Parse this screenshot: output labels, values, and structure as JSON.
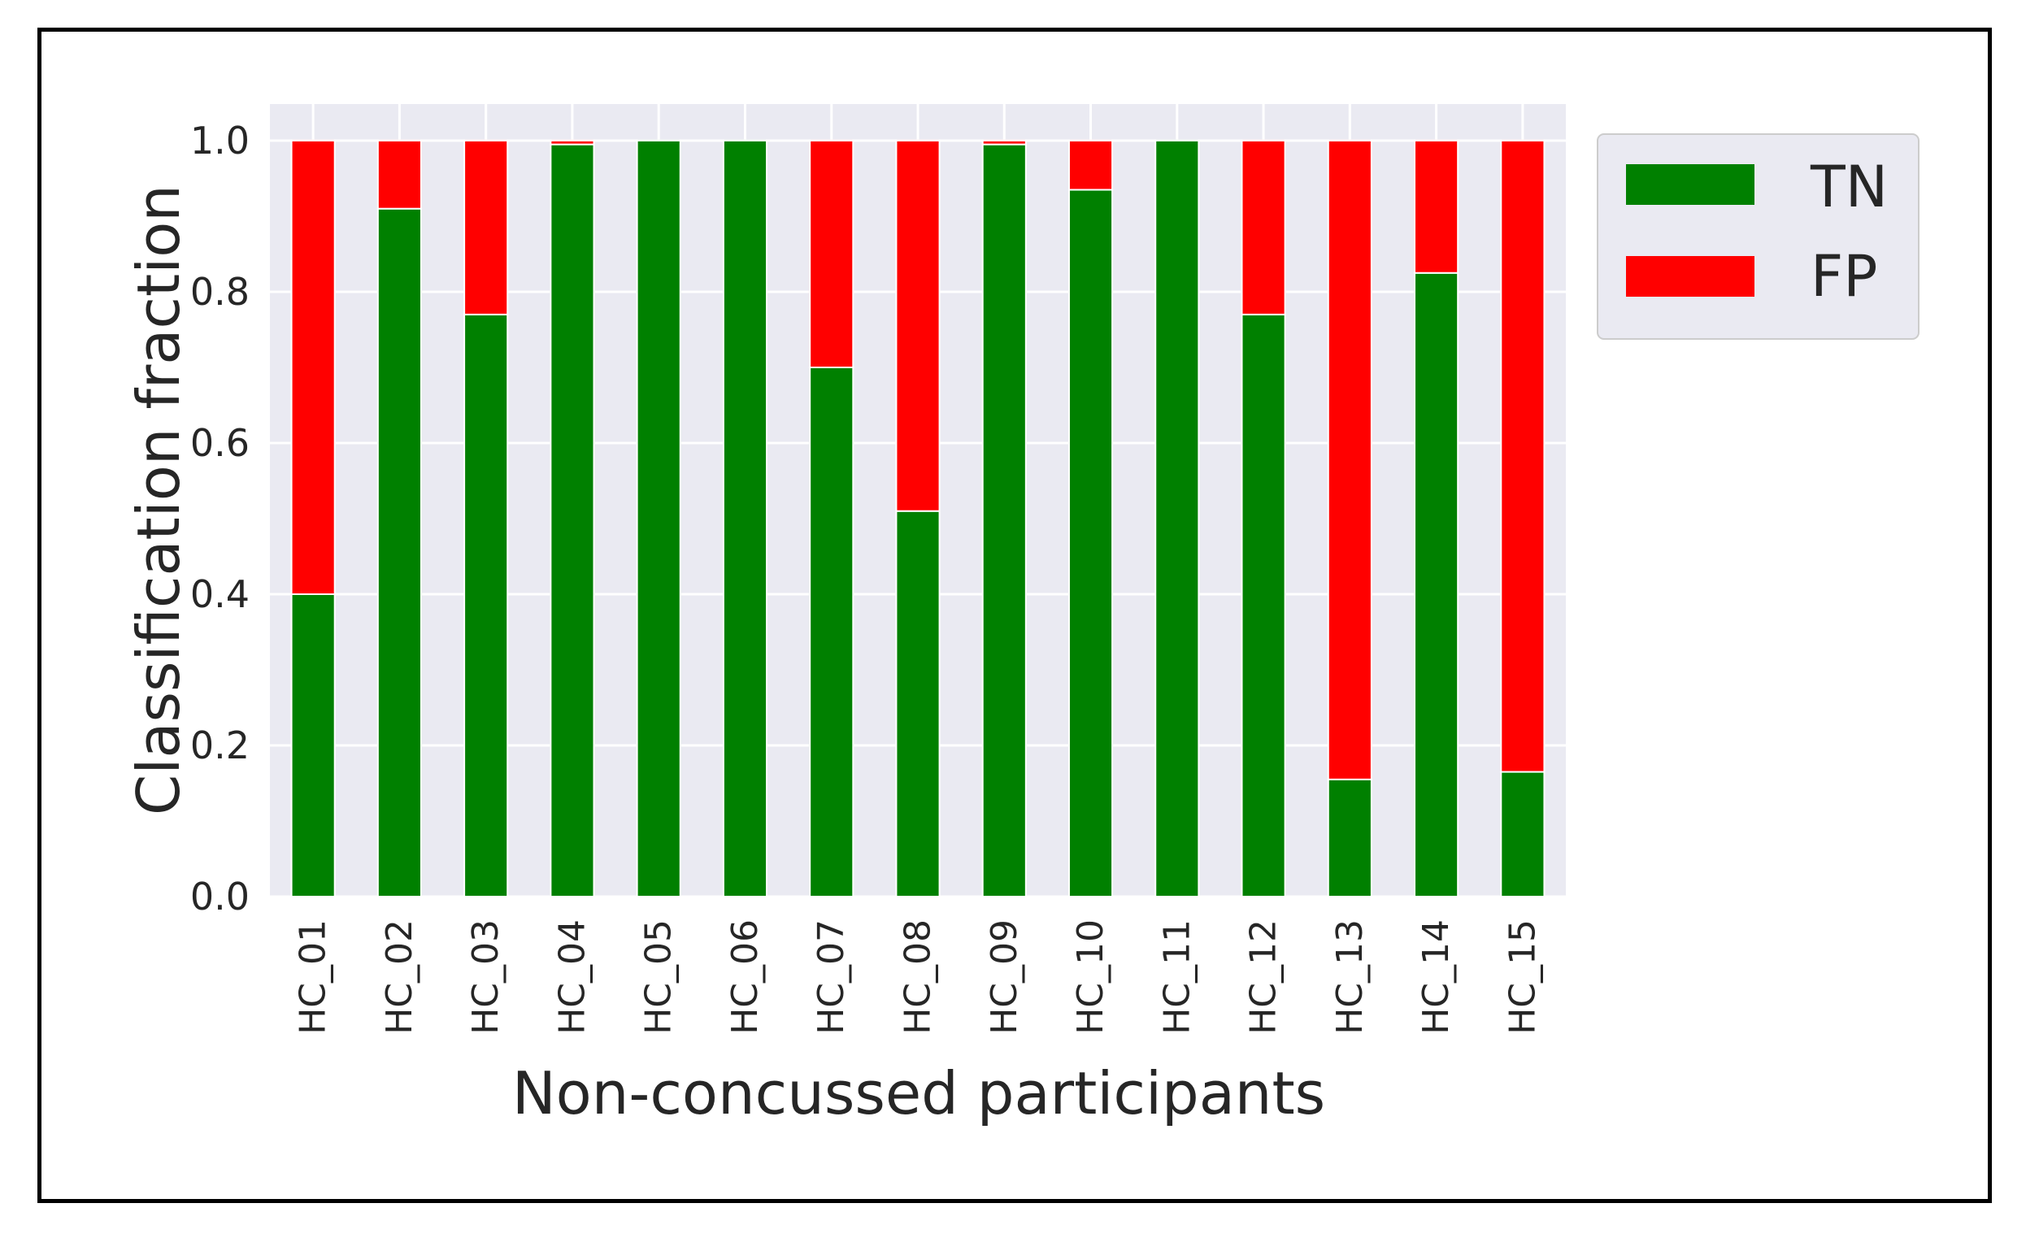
{
  "chart_data": {
    "type": "bar",
    "stacked": true,
    "title": "",
    "xlabel": "Non-concussed participants",
    "ylabel": "Classification fraction",
    "ylim": [
      0,
      1.05
    ],
    "yticks": [
      0.0,
      0.2,
      0.4,
      0.6,
      0.8,
      1.0
    ],
    "ytick_labels": [
      "0.0",
      "0.2",
      "0.4",
      "0.6",
      "0.8",
      "1.0"
    ],
    "grid": true,
    "legend_position": "upper-right-outside",
    "categories": [
      "HC_01",
      "HC_02",
      "HC_03",
      "HC_04",
      "HC_05",
      "HC_06",
      "HC_07",
      "HC_08",
      "HC_09",
      "HC_10",
      "HC_11",
      "HC_12",
      "HC_13",
      "HC_14",
      "HC_15"
    ],
    "series": [
      {
        "name": "TN",
        "color": "#008000",
        "values": [
          0.4,
          0.91,
          0.77,
          0.995,
          1.0,
          1.0,
          0.7,
          0.51,
          0.995,
          0.935,
          1.0,
          0.77,
          0.155,
          0.825,
          0.165
        ]
      },
      {
        "name": "FP",
        "color": "#ff0000",
        "values": [
          0.6,
          0.09,
          0.23,
          0.005,
          0.0,
          0.0,
          0.3,
          0.49,
          0.005,
          0.065,
          0.0,
          0.23,
          0.845,
          0.175,
          0.835
        ]
      }
    ]
  }
}
